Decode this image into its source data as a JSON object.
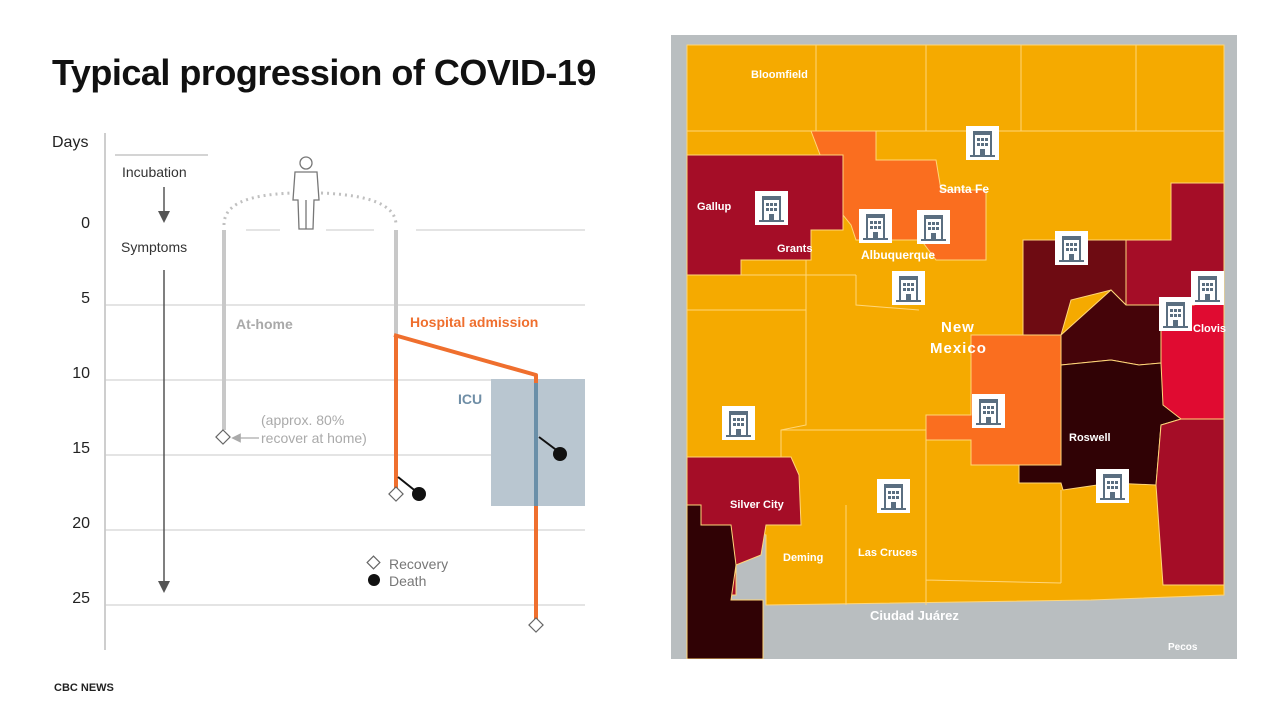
{
  "slide": {
    "title": "Typical progression of COVID-19",
    "source": "CBC NEWS"
  },
  "diagram": {
    "axis_label": "Days",
    "ticks": [
      {
        "day": 0,
        "label": "0"
      },
      {
        "day": 5,
        "label": "5"
      },
      {
        "day": 10,
        "label": "10"
      },
      {
        "day": 15,
        "label": "15"
      },
      {
        "day": 20,
        "label": "20"
      },
      {
        "day": 25,
        "label": "25"
      }
    ],
    "phase_incubation": "Incubation",
    "phase_symptoms": "Symptoms",
    "at_home_label": "At-home",
    "at_home_note_line1": "(approx. 80%",
    "at_home_note_line2": "recover at home)",
    "hospital_label": "Hospital admission",
    "icu_label": "ICU",
    "legend_recovery": "Recovery",
    "legend_death": "Death",
    "colors": {
      "at_home": "#c8c8c8",
      "hospital": "#ef6f2e",
      "icu_box": "#b9c6d0",
      "icu_line": "#6a8fa8",
      "icu_text": "#6f8ea6",
      "grid": "#c9c9c9"
    }
  },
  "map": {
    "state_label_line1": "New",
    "state_label_line2": "Mexico",
    "places": [
      "Bloomfield",
      "Gallup",
      "Santa Fe",
      "Grants",
      "Albuquerque",
      "Clovis",
      "Roswell",
      "Silver City",
      "Deming",
      "Las Cruces",
      "Ciudad Juárez",
      "Pecos"
    ],
    "hospital_icon": "hospital-building-icon",
    "colors": {
      "low": "#f5aa00",
      "medium": "#fa6e1f",
      "high": "#a50d27",
      "very_high": "#e00b31",
      "severe": "#6e0b12",
      "extreme": "#450409",
      "critical": "#300205",
      "background": "#b9bec0",
      "border": "#ffd679"
    }
  }
}
